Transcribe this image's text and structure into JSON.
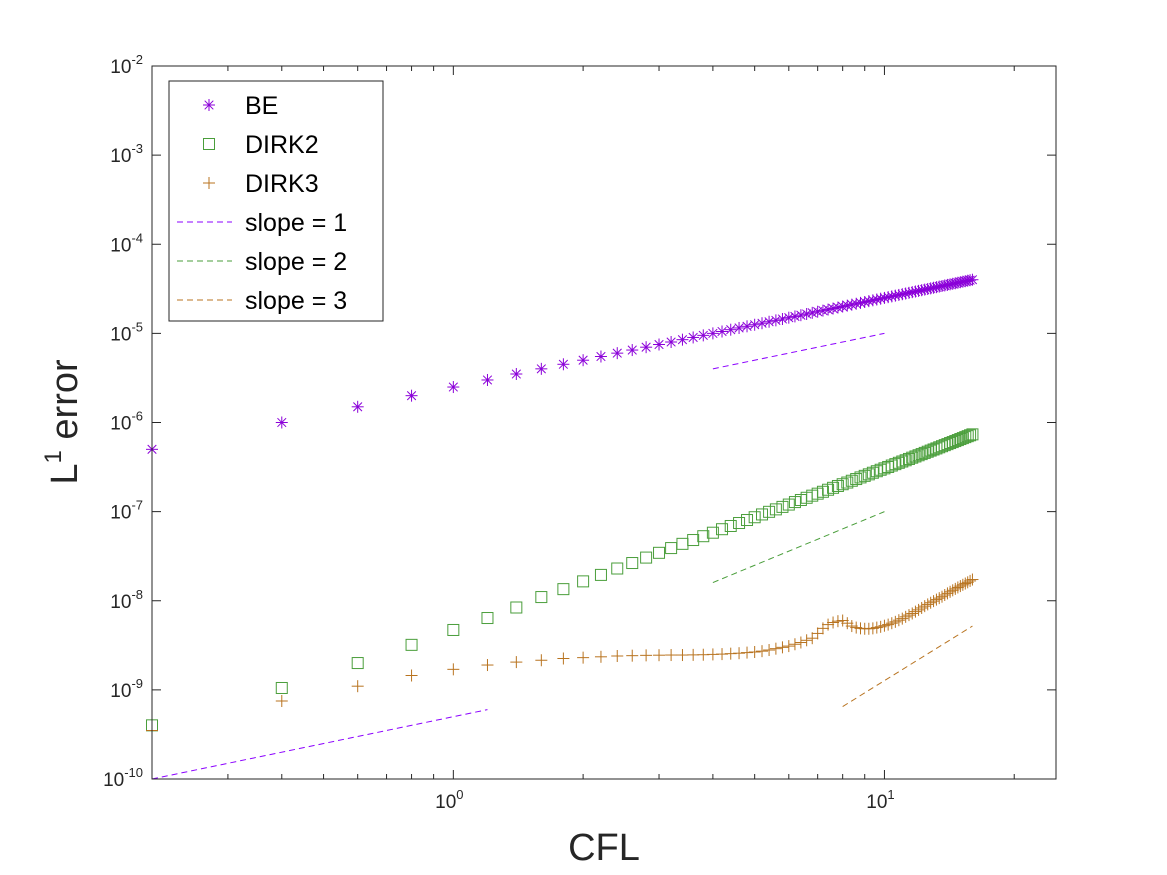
{
  "chart_data": {
    "type": "scatter",
    "xscale": "log",
    "yscale": "log",
    "xlabel": "CFL",
    "ylabel_main": "L",
    "ylabel_sup": "1",
    "ylabel_rest": " error",
    "xlim": [
      0.2,
      25
    ],
    "ylim": [
      1e-10,
      0.01
    ],
    "x_tick_labels": [
      {
        "value": 1,
        "base": "10",
        "exp": "0"
      },
      {
        "value": 10,
        "base": "10",
        "exp": "1"
      }
    ],
    "y_tick_labels": [
      {
        "value": 1e-10,
        "base": "10",
        "exp": "-10"
      },
      {
        "value": 1e-09,
        "base": "10",
        "exp": "-9"
      },
      {
        "value": 1e-08,
        "base": "10",
        "exp": "-8"
      },
      {
        "value": 1e-07,
        "base": "10",
        "exp": "-7"
      },
      {
        "value": 1e-06,
        "base": "10",
        "exp": "-6"
      },
      {
        "value": 1e-05,
        "base": "10",
        "exp": "-5"
      },
      {
        "value": 0.0001,
        "base": "10",
        "exp": "-4"
      },
      {
        "value": 0.001,
        "base": "10",
        "exp": "-3"
      },
      {
        "value": 0.01,
        "base": "10",
        "exp": "-2"
      }
    ],
    "legend_location": "top-left",
    "series": [
      {
        "name": "BE",
        "marker": "asterisk",
        "color": "#8B00D9",
        "x": [
          0.2,
          0.4,
          0.6,
          0.8,
          1.0,
          1.2,
          1.4,
          1.6,
          1.8,
          2.0,
          2.2,
          2.4,
          2.6,
          2.8,
          3.0,
          3.2,
          3.4,
          3.6,
          3.8,
          4.0,
          4.2,
          4.4,
          4.6,
          4.8,
          5.0,
          5.2,
          5.4,
          5.6,
          5.8,
          6.0,
          6.2,
          6.4,
          6.6,
          6.8,
          7.0,
          7.2,
          7.4,
          7.6,
          7.8,
          8.0,
          8.2,
          8.4,
          8.6,
          8.8,
          9.0,
          9.2,
          9.4,
          9.6,
          9.8,
          10.0,
          10.2,
          10.4,
          10.6,
          10.8,
          11.0,
          11.2,
          11.4,
          11.6,
          11.8,
          12.0,
          12.2,
          12.4,
          12.6,
          12.8,
          13.0,
          13.2,
          13.4,
          13.6,
          13.8,
          14.0,
          14.2,
          14.4,
          14.6,
          14.8,
          15.0,
          15.2,
          15.4,
          15.6,
          15.8,
          16.0
        ],
        "y": [
          5e-07,
          1e-06,
          1.5e-06,
          2e-06,
          2.5e-06,
          3e-06,
          3.5e-06,
          4e-06,
          4.5e-06,
          5e-06,
          5.5e-06,
          6e-06,
          6.5e-06,
          7e-06,
          7.5e-06,
          8e-06,
          8.5e-06,
          9e-06,
          9.5e-06,
          1e-05,
          1.05e-05,
          1.1e-05,
          1.15e-05,
          1.2e-05,
          1.25e-05,
          1.3e-05,
          1.35e-05,
          1.4e-05,
          1.45e-05,
          1.5e-05,
          1.55e-05,
          1.6e-05,
          1.65e-05,
          1.7e-05,
          1.75e-05,
          1.8e-05,
          1.85e-05,
          1.9e-05,
          1.95e-05,
          2e-05,
          2.05e-05,
          2.1e-05,
          2.15e-05,
          2.2e-05,
          2.25e-05,
          2.3e-05,
          2.35e-05,
          2.4e-05,
          2.45e-05,
          2.5e-05,
          2.55e-05,
          2.6e-05,
          2.65e-05,
          2.7e-05,
          2.75e-05,
          2.8e-05,
          2.85e-05,
          2.9e-05,
          2.95e-05,
          3e-05,
          3.05e-05,
          3.1e-05,
          3.15e-05,
          3.2e-05,
          3.25e-05,
          3.3e-05,
          3.35e-05,
          3.4e-05,
          3.45e-05,
          3.5e-05,
          3.55e-05,
          3.6e-05,
          3.65e-05,
          3.7e-05,
          3.75e-05,
          3.8e-05,
          3.85e-05,
          3.9e-05,
          3.95e-05,
          4e-05
        ]
      },
      {
        "name": "DIRK2",
        "marker": "square",
        "color": "#4A9E3B",
        "x": [
          0.2,
          0.4,
          0.6,
          0.8,
          1.0,
          1.2,
          1.4,
          1.6,
          1.8,
          2.0,
          2.2,
          2.4,
          2.6,
          2.8,
          3.0,
          3.2,
          3.4,
          3.6,
          3.8,
          4.0,
          4.2,
          4.4,
          4.6,
          4.8,
          5.0,
          5.2,
          5.4,
          5.6,
          5.8,
          6.0,
          6.2,
          6.4,
          6.6,
          6.8,
          7.0,
          7.2,
          7.4,
          7.6,
          7.8,
          8.0,
          8.2,
          8.4,
          8.6,
          8.8,
          9.0,
          9.2,
          9.4,
          9.6,
          9.8,
          10.0,
          10.2,
          10.4,
          10.6,
          10.8,
          11.0,
          11.2,
          11.4,
          11.6,
          11.8,
          12.0,
          12.2,
          12.4,
          12.6,
          12.8,
          13.0,
          13.2,
          13.4,
          13.6,
          13.8,
          14.0,
          14.2,
          14.4,
          14.6,
          14.8,
          15.0,
          15.2,
          15.4,
          15.6,
          15.8,
          16.0
        ],
        "y": [
          4e-10,
          1.05e-09,
          2e-09,
          3.2e-09,
          4.7e-09,
          6.4e-09,
          8.4e-09,
          1.1e-08,
          1.35e-08,
          1.65e-08,
          1.95e-08,
          2.3e-08,
          2.65e-08,
          3.05e-08,
          3.45e-08,
          3.9e-08,
          4.35e-08,
          4.8e-08,
          5.3e-08,
          5.8e-08,
          6.35e-08,
          6.9e-08,
          7.45e-08,
          8.05e-08,
          8.65e-08,
          9.3e-08,
          9.95e-08,
          1.06e-07,
          1.13e-07,
          1.2e-07,
          1.28e-07,
          1.35e-07,
          1.43e-07,
          1.51e-07,
          1.59e-07,
          1.67e-07,
          1.76e-07,
          1.85e-07,
          1.94e-07,
          2.03e-07,
          2.12e-07,
          2.22e-07,
          2.32e-07,
          2.42e-07,
          2.52e-07,
          2.62e-07,
          2.73e-07,
          2.84e-07,
          2.95e-07,
          3.06e-07,
          3.17e-07,
          3.29e-07,
          3.41e-07,
          3.53e-07,
          3.65e-07,
          3.77e-07,
          3.9e-07,
          4.03e-07,
          4.16e-07,
          4.29e-07,
          4.42e-07,
          4.56e-07,
          4.7e-07,
          4.84e-07,
          4.98e-07,
          5.12e-07,
          5.27e-07,
          5.42e-07,
          5.57e-07,
          5.72e-07,
          5.88e-07,
          6.03e-07,
          6.19e-07,
          6.35e-07,
          6.52e-07,
          6.68e-07,
          6.85e-07,
          7.02e-07,
          7.19e-07,
          7.36e-07
        ]
      },
      {
        "name": "DIRK3",
        "marker": "plus",
        "color": "#B8731F",
        "x": [
          0.2,
          0.4,
          0.6,
          0.8,
          1.0,
          1.2,
          1.4,
          1.6,
          1.8,
          2.0,
          2.2,
          2.4,
          2.6,
          2.8,
          3.0,
          3.2,
          3.4,
          3.6,
          3.8,
          4.0,
          4.2,
          4.4,
          4.6,
          4.8,
          5.0,
          5.2,
          5.4,
          5.6,
          5.8,
          6.0,
          6.2,
          6.4,
          6.6,
          6.8,
          7.0,
          7.2,
          7.4,
          7.6,
          7.8,
          8.0,
          8.2,
          8.4,
          8.6,
          8.8,
          9.0,
          9.2,
          9.4,
          9.6,
          9.8,
          10.0,
          10.2,
          10.4,
          10.6,
          10.8,
          11.0,
          11.2,
          11.4,
          11.6,
          11.8,
          12.0,
          12.2,
          12.4,
          12.6,
          12.8,
          13.0,
          13.2,
          13.4,
          13.6,
          13.8,
          14.0,
          14.2,
          14.4,
          14.6,
          14.8,
          15.0,
          15.2,
          15.4,
          15.6,
          15.8,
          16.0
        ],
        "y": [
          3.5e-10,
          7.5e-10,
          1.1e-09,
          1.45e-09,
          1.7e-09,
          1.9e-09,
          2.05e-09,
          2.15e-09,
          2.25e-09,
          2.3e-09,
          2.35e-09,
          2.4e-09,
          2.42e-09,
          2.44e-09,
          2.45e-09,
          2.46e-09,
          2.46e-09,
          2.47e-09,
          2.48e-09,
          2.5e-09,
          2.52e-09,
          2.55e-09,
          2.58e-09,
          2.62e-09,
          2.66e-09,
          2.72e-09,
          2.8e-09,
          2.9e-09,
          3e-09,
          3.1e-09,
          3.25e-09,
          3.4e-09,
          3.6e-09,
          3.8e-09,
          4.3e-09,
          4.9e-09,
          5.4e-09,
          5.7e-09,
          5.9e-09,
          6e-09,
          5.6e-09,
          5.2e-09,
          5e-09,
          4.9e-09,
          4.85e-09,
          4.85e-09,
          4.9e-09,
          5e-09,
          5.1e-09,
          5.25e-09,
          5.4e-09,
          5.6e-09,
          5.8e-09,
          6.05e-09,
          6.3e-09,
          6.6e-09,
          6.9e-09,
          7.2e-09,
          7.55e-09,
          7.9e-09,
          8.3e-09,
          8.7e-09,
          9.1e-09,
          9.5e-09,
          9.9e-09,
          1.03e-08,
          1.07e-08,
          1.11e-08,
          1.16e-08,
          1.21e-08,
          1.26e-08,
          1.31e-08,
          1.36e-08,
          1.41e-08,
          1.46e-08,
          1.51e-08,
          1.56e-08,
          1.61e-08,
          1.67e-08,
          1.73e-08
        ]
      },
      {
        "name": "slope = 1",
        "line": "dashed",
        "color": "#8B00FF",
        "segments": [
          {
            "x": [
              0.2,
              1.2
            ],
            "y": [
              1e-10,
              6e-10
            ]
          },
          {
            "x": [
              4,
              10
            ],
            "y": [
              4e-06,
              1e-05
            ]
          }
        ]
      },
      {
        "name": "slope = 2",
        "line": "dashed",
        "color": "#4A9E3B",
        "segments": [
          {
            "x": [
              4,
              10
            ],
            "y": [
              1.6e-08,
              1e-07
            ]
          }
        ]
      },
      {
        "name": "slope = 3",
        "line": "dashed",
        "color": "#B8731F",
        "segments": [
          {
            "x": [
              8,
              16
            ],
            "y": [
              6.5e-10,
              5.2e-09
            ]
          }
        ]
      }
    ]
  }
}
